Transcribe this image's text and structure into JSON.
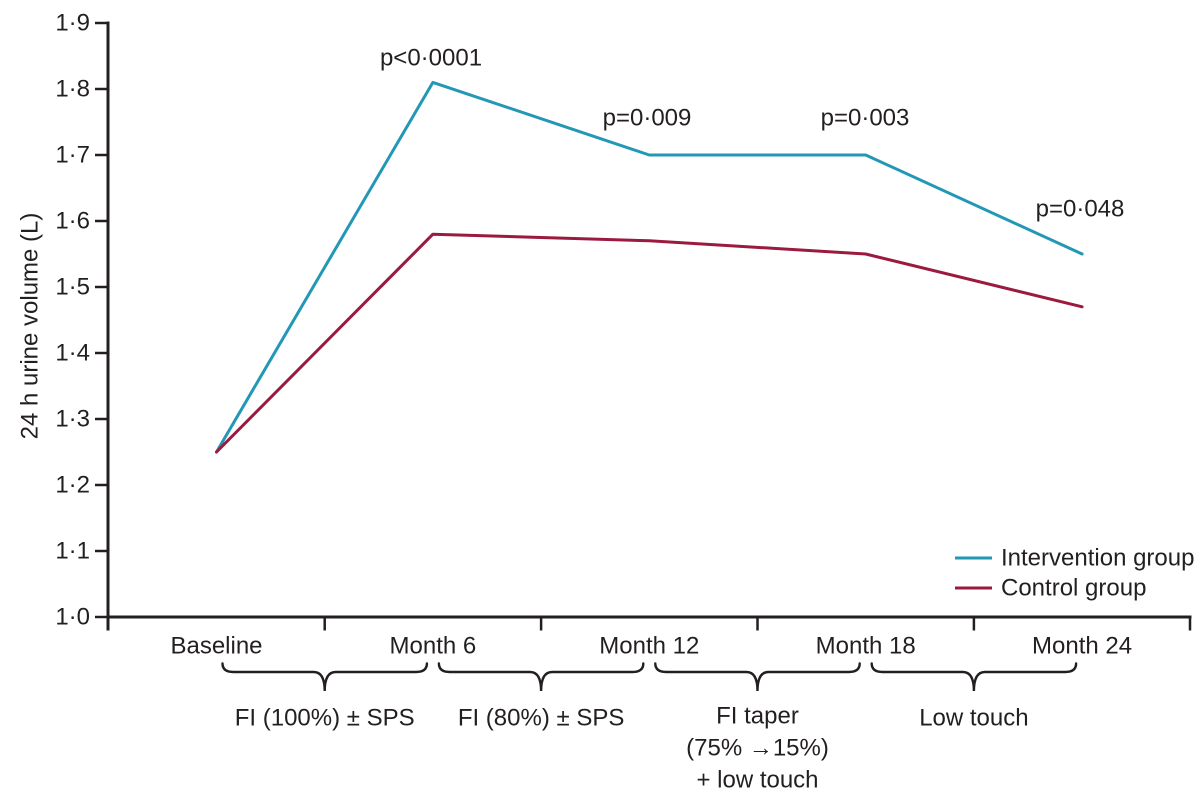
{
  "chart_data": {
    "type": "line",
    "title": "",
    "ylabel": "24 h urine volume (L)",
    "xlabel": "",
    "decimal_separator": "·",
    "categories": [
      "Baseline",
      "Month 6",
      "Month 12",
      "Month 18",
      "Month 24"
    ],
    "series": [
      {
        "name": "Intervention group",
        "color": "#2397b6",
        "values": [
          1.25,
          1.81,
          1.7,
          1.7,
          1.55
        ]
      },
      {
        "name": "Control group",
        "color": "#9a1b3f",
        "values": [
          1.25,
          1.58,
          1.57,
          1.55,
          1.47
        ]
      }
    ],
    "ylim": [
      1.0,
      1.9
    ],
    "ytick_step": 0.1,
    "ytick_labels": [
      "1·0",
      "1·1",
      "1·2",
      "1·3",
      "1·4",
      "1·5",
      "1·6",
      "1·7",
      "1·8",
      "1·9"
    ],
    "grid": false,
    "legend_position": "bottom-right",
    "legend": [
      {
        "label": "Intervention group",
        "color": "#2397b6"
      },
      {
        "label": "Control group",
        "color": "#9a1b3f"
      }
    ],
    "annotations": [
      {
        "text": "p<0·0001",
        "x_category": "Month 6",
        "series": "Intervention group"
      },
      {
        "text": "p=0·009",
        "x_category": "Month 12",
        "series": "Intervention group"
      },
      {
        "text": "p=0·003",
        "x_category": "Month 18",
        "series": "Intervention group"
      },
      {
        "text": "p=0·048",
        "x_category": "Month 24",
        "series": "Intervention group"
      }
    ],
    "phase_braces": [
      {
        "from_index": 0,
        "to_index": 1,
        "label_lines": [
          "FI (100%) ± SPS"
        ]
      },
      {
        "from_index": 1,
        "to_index": 2,
        "label_lines": [
          "FI (80%) ± SPS"
        ]
      },
      {
        "from_index": 2,
        "to_index": 3,
        "label_lines": [
          "FI taper",
          "(75% →15%)",
          "+ low touch"
        ]
      },
      {
        "from_index": 3,
        "to_index": 4,
        "label_lines": [
          "Low touch"
        ]
      }
    ]
  },
  "colors": {
    "background": "#ffffff",
    "text": "#231f20",
    "axis": "#231f20"
  }
}
